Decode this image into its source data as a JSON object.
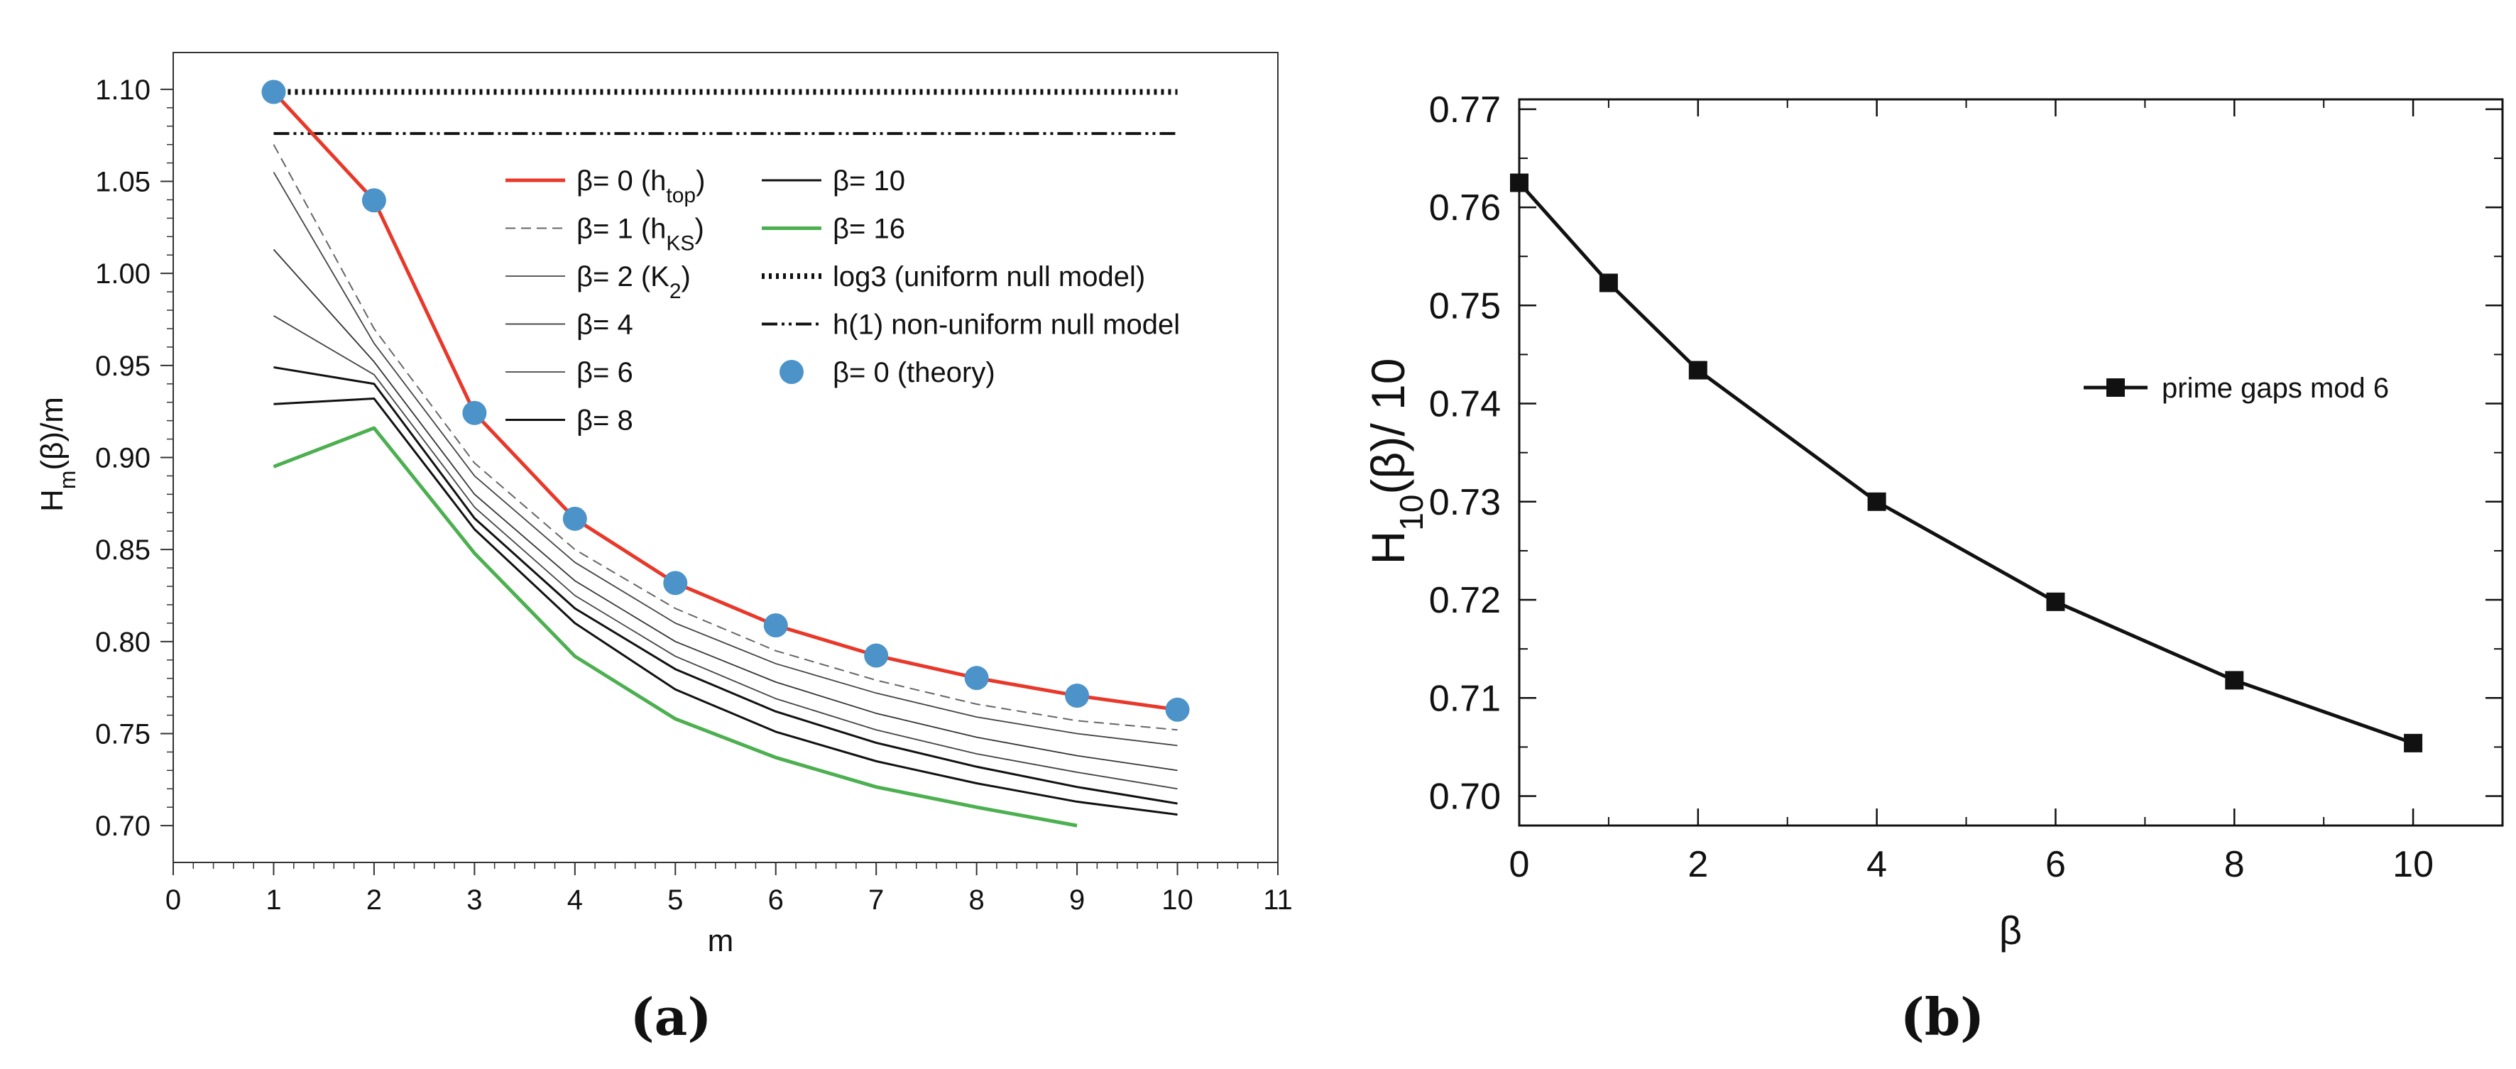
{
  "chart_data": [
    {
      "type": "line",
      "panel_label": "(a)",
      "xlabel": "m",
      "ylabel": {
        "base": "H",
        "sub": "m",
        "rest": "(β)/m"
      },
      "xlim": [
        0,
        11
      ],
      "ylim": [
        0.68,
        1.12
      ],
      "xticks": [
        0,
        1,
        2,
        3,
        4,
        5,
        6,
        7,
        8,
        9,
        10,
        11
      ],
      "yticks": [
        0.7,
        0.75,
        0.8,
        0.85,
        0.9,
        0.95,
        1.0,
        1.05,
        1.1
      ],
      "series": [
        {
          "key": "b0",
          "legend": {
            "text": "β= 0 (h",
            "sub": "top",
            "tail": ")"
          },
          "color": "#e8382a",
          "style": "solid-thick",
          "x": [
            1,
            2,
            3,
            4,
            5,
            6,
            7,
            8,
            9,
            10
          ],
          "values": [
            1.0986,
            1.0397,
            0.9242,
            0.8667,
            0.8318,
            0.8088,
            0.7924,
            0.7802,
            0.7706,
            0.763
          ]
        },
        {
          "key": "b1",
          "legend": {
            "text": "β= 1 (h",
            "sub": "KS",
            "tail": ")"
          },
          "color": "#666666",
          "style": "dashed",
          "x": [
            1,
            2,
            3,
            4,
            5,
            6,
            7,
            8,
            9,
            10
          ],
          "values": [
            1.07,
            0.97,
            0.897,
            0.85,
            0.818,
            0.795,
            0.779,
            0.766,
            0.757,
            0.752
          ]
        },
        {
          "key": "b2",
          "legend": {
            "text": "β= 2 (K",
            "sub": "2",
            "tail": ")"
          },
          "color": "#444444",
          "style": "thin",
          "x": [
            1,
            2,
            3,
            4,
            5,
            6,
            7,
            8,
            9,
            10
          ],
          "values": [
            1.055,
            0.962,
            0.89,
            0.843,
            0.81,
            0.788,
            0.772,
            0.759,
            0.75,
            0.7435
          ]
        },
        {
          "key": "b4",
          "legend": {
            "text": "β= 4",
            "sub": "",
            "tail": ""
          },
          "color": "#333333",
          "style": "thin",
          "x": [
            1,
            2,
            3,
            4,
            5,
            6,
            7,
            8,
            9,
            10
          ],
          "values": [
            1.013,
            0.952,
            0.88,
            0.833,
            0.8,
            0.778,
            0.761,
            0.748,
            0.738,
            0.73
          ]
        },
        {
          "key": "b6",
          "legend": {
            "text": "β= 6",
            "sub": "",
            "tail": ""
          },
          "color": "#444444",
          "style": "thin",
          "x": [
            1,
            2,
            3,
            4,
            5,
            6,
            7,
            8,
            9,
            10
          ],
          "values": [
            0.977,
            0.945,
            0.873,
            0.825,
            0.792,
            0.769,
            0.752,
            0.739,
            0.729,
            0.72
          ]
        },
        {
          "key": "b8",
          "legend": {
            "text": "β= 8",
            "sub": "",
            "tail": ""
          },
          "color": "#111111",
          "style": "solid",
          "x": [
            1,
            2,
            3,
            4,
            5,
            6,
            7,
            8,
            9,
            10
          ],
          "values": [
            0.949,
            0.94,
            0.867,
            0.818,
            0.785,
            0.762,
            0.745,
            0.732,
            0.721,
            0.712
          ]
        },
        {
          "key": "b10",
          "legend": {
            "text": "β= 10",
            "sub": "",
            "tail": ""
          },
          "color": "#111111",
          "style": "solid",
          "x": [
            1,
            2,
            3,
            4,
            5,
            6,
            7,
            8,
            9,
            10
          ],
          "values": [
            0.929,
            0.932,
            0.861,
            0.81,
            0.774,
            0.751,
            0.735,
            0.723,
            0.713,
            0.706
          ]
        },
        {
          "key": "b16",
          "legend": {
            "text": "β= 16",
            "sub": "",
            "tail": ""
          },
          "color": "#4caf50",
          "style": "solid-thick",
          "x": [
            1,
            2,
            3,
            4,
            5,
            6,
            7,
            8,
            9
          ],
          "values": [
            0.895,
            0.916,
            0.848,
            0.792,
            0.758,
            0.737,
            0.721,
            0.71,
            0.7
          ]
        },
        {
          "key": "log3",
          "legend": {
            "text": "log3 (uniform null model)",
            "sub": "",
            "tail": ""
          },
          "color": "#111111",
          "style": "dotted",
          "x": [
            1,
            10
          ],
          "values": [
            1.0986,
            1.0986
          ]
        },
        {
          "key": "h1",
          "legend": {
            "text": "h(1) non-uniform null model",
            "sub": "",
            "tail": ""
          },
          "color": "#111111",
          "style": "dashdotdot",
          "x": [
            1,
            10
          ],
          "values": [
            1.076,
            1.076
          ]
        },
        {
          "key": "theory",
          "legend": {
            "text": "β= 0 (theory)",
            "sub": "",
            "tail": ""
          },
          "color": "#4b93c8",
          "style": "markers",
          "x": [
            1,
            2,
            3,
            4,
            5,
            6,
            7,
            8,
            9,
            10
          ],
          "values": [
            1.0986,
            1.0397,
            0.9242,
            0.8667,
            0.8318,
            0.8088,
            0.7924,
            0.7802,
            0.7706,
            0.763
          ]
        }
      ],
      "legend_columns": [
        [
          "b0",
          "b1",
          "b2",
          "b4",
          "b6",
          "b8"
        ],
        [
          "b10",
          "b16",
          "log3",
          "h1",
          "theory"
        ]
      ]
    },
    {
      "type": "line",
      "panel_label": "(b)",
      "xlabel": "β",
      "ylabel": {
        "base": "H",
        "sub": "10",
        "rest": "(β)/ 10"
      },
      "xlim": [
        0,
        11
      ],
      "ylim": [
        0.697,
        0.771
      ],
      "xticks": [
        0,
        2,
        4,
        6,
        8,
        10
      ],
      "xticks_minor": [
        1,
        3,
        5,
        7,
        9,
        11
      ],
      "yticks": [
        0.7,
        0.71,
        0.72,
        0.73,
        0.74,
        0.75,
        0.76,
        0.77
      ],
      "series": [
        {
          "key": "pg",
          "legend": {
            "text": "prime gaps mod 6",
            "sub": "",
            "tail": ""
          },
          "color": "#111111",
          "style": "line-squares",
          "x": [
            0,
            1,
            2,
            4,
            6,
            8,
            10
          ],
          "values": [
            0.7625,
            0.7523,
            0.7434,
            0.73,
            0.7198,
            0.7118,
            0.7054
          ]
        }
      ]
    }
  ]
}
